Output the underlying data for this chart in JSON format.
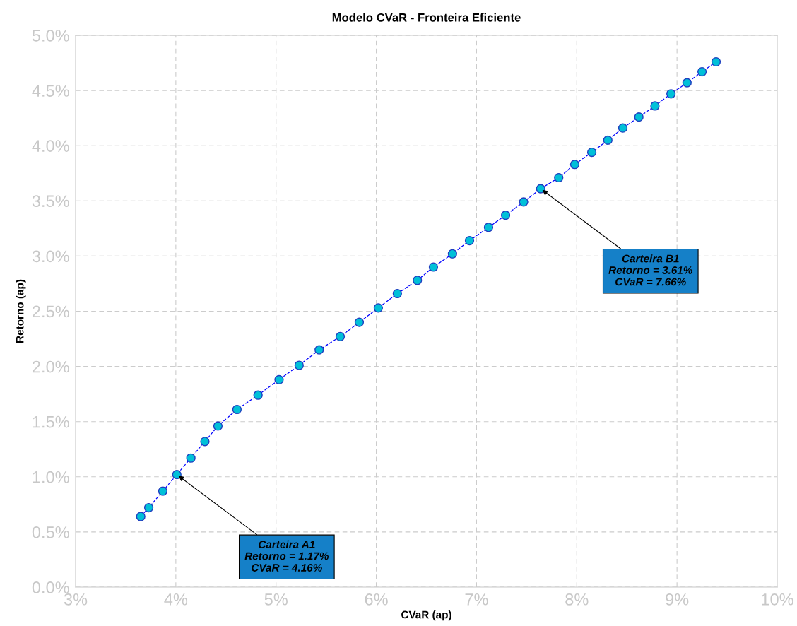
{
  "chart_data": {
    "type": "line",
    "title": "Modelo CVaR - Fronteira Eficiente",
    "xlabel": "CVaR (ap)",
    "ylabel": "Retorno (ap)",
    "series": [
      {
        "color": "#00c0d8",
        "x": [
          3.65,
          3.73,
          3.87,
          4.01,
          4.15,
          4.29,
          4.42,
          4.61,
          4.82,
          5.03,
          5.23,
          5.43,
          5.64,
          5.83,
          6.02,
          6.21,
          6.41,
          6.57,
          6.76,
          6.93,
          7.12,
          7.29,
          7.47,
          7.64,
          7.82,
          7.98,
          8.15,
          8.31,
          8.46,
          8.62,
          8.78,
          8.94,
          9.1,
          9.25,
          9.39
        ],
        "values": [
          0.64,
          0.72,
          0.87,
          1.02,
          1.17,
          1.32,
          1.46,
          1.61,
          1.74,
          1.88,
          2.01,
          2.15,
          2.27,
          2.4,
          2.53,
          2.66,
          2.78,
          2.9,
          3.02,
          3.14,
          3.26,
          3.37,
          3.49,
          3.61,
          3.71,
          3.83,
          3.94,
          4.05,
          4.16,
          4.26,
          4.36,
          4.47,
          4.57,
          4.67,
          4.76
        ]
      }
    ],
    "marker": "circle",
    "line_style": "dashed",
    "grid": true,
    "xlim": [
      3,
      10
    ],
    "ylim": [
      0,
      5
    ],
    "xticks": [
      {
        "value": 3,
        "label": "3%"
      },
      {
        "value": 4,
        "label": "4%"
      },
      {
        "value": 5,
        "label": "5%"
      },
      {
        "value": 6,
        "label": "6%"
      },
      {
        "value": 7,
        "label": "7%"
      },
      {
        "value": 8,
        "label": "8%"
      },
      {
        "value": 9,
        "label": "9%"
      },
      {
        "value": 10,
        "label": "10%"
      }
    ],
    "yticks": [
      {
        "value": 0,
        "label": "0.0%"
      },
      {
        "value": 0.5,
        "label": "0.5%"
      },
      {
        "value": 1,
        "label": "1.0%"
      },
      {
        "value": 1.5,
        "label": "1.5%"
      },
      {
        "value": 2,
        "label": "2.0%"
      },
      {
        "value": 2.5,
        "label": "2.5%"
      },
      {
        "value": 3,
        "label": "3.0%"
      },
      {
        "value": 3.5,
        "label": "3.5%"
      },
      {
        "value": 4,
        "label": "4.0%"
      },
      {
        "value": 4.5,
        "label": "4.5%"
      },
      {
        "value": 5,
        "label": "5.0%"
      }
    ],
    "annotations": [
      {
        "text": "Carteira A1\nRetorno = 1.17%\nCVaR = 4.16%",
        "x": 4.01,
        "y": 1.02
      },
      {
        "text": "Carteira B1\nRetorno = 3.61%\nCVaR = 7.66%",
        "x": 7.64,
        "y": 3.61
      }
    ]
  }
}
